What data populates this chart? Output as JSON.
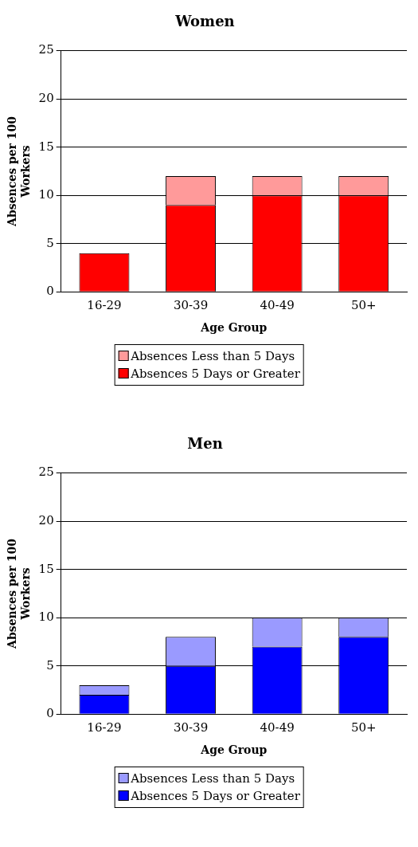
{
  "chart_data": [
    {
      "type": "bar",
      "title": "Women",
      "xlabel": "Age Group",
      "ylabel": "Absences per 100 Workers",
      "categories": [
        "16-29",
        "30-39",
        "40-49",
        "50+"
      ],
      "stacked": true,
      "legend": "bottom",
      "grid": "y",
      "ylim": [
        0,
        25
      ],
      "yticks": [
        0,
        5,
        10,
        15,
        20,
        25
      ],
      "series": [
        {
          "name": "Absences 5 Days or Greater",
          "color": "#ff0000",
          "values": [
            4,
            9,
            10,
            10
          ]
        },
        {
          "name": "Absences Less than 5 Days",
          "color": "#ff9a9a",
          "values": [
            0,
            3,
            2,
            2
          ]
        }
      ]
    },
    {
      "type": "bar",
      "title": "Men",
      "xlabel": "Age Group",
      "ylabel": "Absences per 100 Workers",
      "categories": [
        "16-29",
        "30-39",
        "40-49",
        "50+"
      ],
      "stacked": true,
      "legend": "bottom",
      "grid": "y",
      "ylim": [
        0,
        25
      ],
      "yticks": [
        0,
        5,
        10,
        15,
        20,
        25
      ],
      "series": [
        {
          "name": "Absences 5 Days or Greater",
          "color": "#0000ff",
          "values": [
            2,
            5,
            7,
            8
          ]
        },
        {
          "name": "Absences Less than 5 Days",
          "color": "#9a9aff",
          "values": [
            1,
            3,
            3,
            2
          ]
        }
      ]
    }
  ]
}
